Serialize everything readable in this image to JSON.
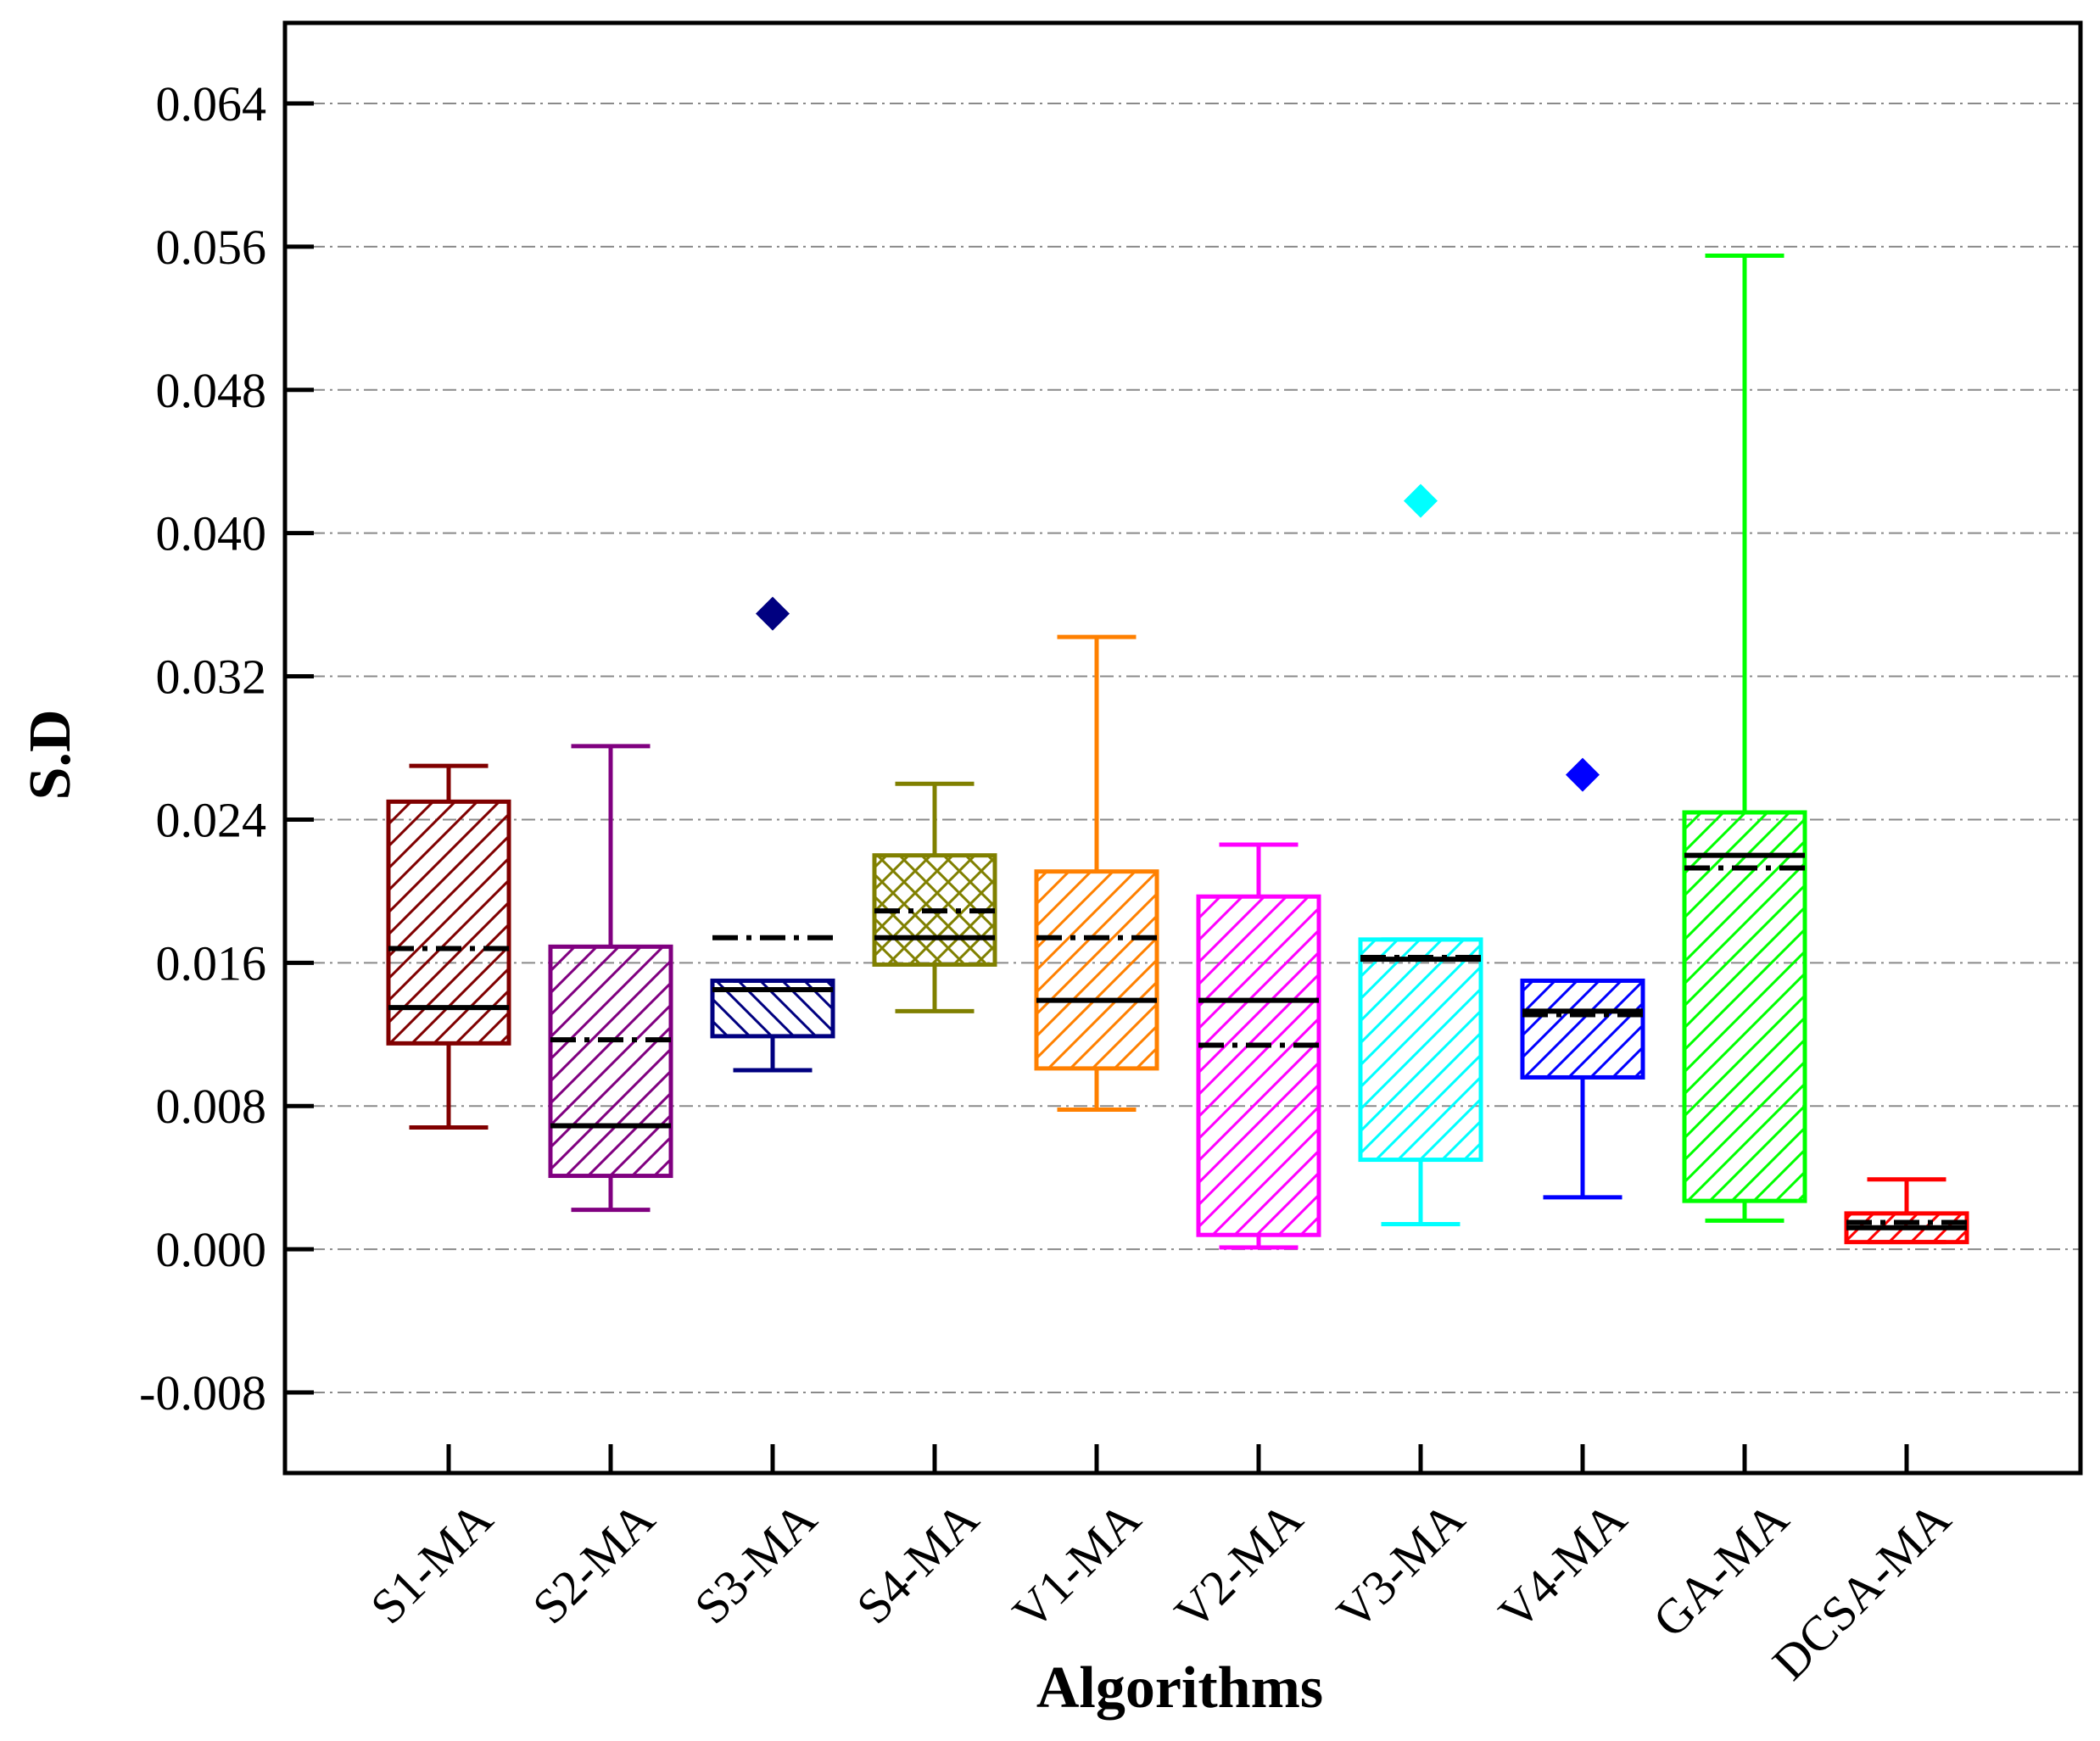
{
  "chart_data": {
    "type": "box",
    "title": "",
    "xlabel": "Algorithms",
    "ylabel": "S.D",
    "ylim": [
      -0.0125,
      0.0685
    ],
    "yticks": [
      -0.008,
      0.0,
      0.008,
      0.016,
      0.024,
      0.032,
      0.04,
      0.048,
      0.056,
      0.064
    ],
    "ytick_labels": [
      "-0.008",
      "0.000",
      "0.008",
      "0.016",
      "0.024",
      "0.032",
      "0.040",
      "0.048",
      "0.056",
      "0.064"
    ],
    "grid": true,
    "categories": [
      "S1-MA",
      "S2-MA",
      "S3-MA",
      "S4-MA",
      "V1-MA",
      "V2-MA",
      "V3-MA",
      "V4-MA",
      "GA-MA",
      "DCSA-MA"
    ],
    "boxes": [
      {
        "name": "S1-MA",
        "color": "#800000",
        "hatch": "diag",
        "whisker_low": 0.0068,
        "q1": 0.0115,
        "median": 0.0135,
        "mean": 0.0168,
        "q3": 0.025,
        "whisker_high": 0.027,
        "outliers": []
      },
      {
        "name": "S2-MA",
        "color": "#800080",
        "hatch": "diag",
        "whisker_low": 0.0022,
        "q1": 0.0041,
        "median": 0.0069,
        "mean": 0.0117,
        "q3": 0.0169,
        "whisker_high": 0.0281,
        "outliers": []
      },
      {
        "name": "S3-MA",
        "color": "#000080",
        "hatch": "back",
        "whisker_low": 0.01,
        "q1": 0.0119,
        "median": 0.0145,
        "mean": 0.0174,
        "q3": 0.015,
        "whisker_high": 0.015,
        "outliers": [
          0.0355
        ]
      },
      {
        "name": "S4-MA",
        "color": "#808000",
        "hatch": "cross",
        "whisker_low": 0.0133,
        "q1": 0.0159,
        "median": 0.0174,
        "mean": 0.0189,
        "q3": 0.022,
        "whisker_high": 0.026,
        "outliers": []
      },
      {
        "name": "V1-MA",
        "color": "#FF8000",
        "hatch": "diag",
        "whisker_low": 0.0078,
        "q1": 0.0101,
        "median": 0.0139,
        "mean": 0.0174,
        "q3": 0.0211,
        "whisker_high": 0.0342,
        "outliers": []
      },
      {
        "name": "V2-MA",
        "color": "#FF00FF",
        "hatch": "diag",
        "whisker_low": 0.0001,
        "q1": 0.0008,
        "median": 0.0139,
        "mean": 0.0114,
        "q3": 0.0197,
        "whisker_high": 0.0226,
        "outliers": []
      },
      {
        "name": "V3-MA",
        "color": "#00FFFF",
        "hatch": "diag",
        "whisker_low": 0.0014,
        "q1": 0.005,
        "median": 0.0162,
        "mean": 0.0163,
        "q3": 0.0173,
        "whisker_high": 0.0173,
        "outliers": [
          0.0418
        ]
      },
      {
        "name": "V4-MA",
        "color": "#0000FF",
        "hatch": "diag",
        "whisker_low": 0.0029,
        "q1": 0.0096,
        "median": 0.0133,
        "mean": 0.0131,
        "q3": 0.015,
        "whisker_high": 0.015,
        "outliers": [
          0.0265
        ]
      },
      {
        "name": "GA-MA",
        "color": "#00FF00",
        "hatch": "diag",
        "whisker_low": 0.0016,
        "q1": 0.0027,
        "median": 0.022,
        "mean": 0.0213,
        "q3": 0.0244,
        "whisker_high": 0.0555,
        "outliers": []
      },
      {
        "name": "DCSA-MA",
        "color": "#FF0000",
        "hatch": "diag",
        "whisker_low": 0.0004,
        "q1": 0.0004,
        "median": 0.0012,
        "mean": 0.0015,
        "q3": 0.002,
        "whisker_high": 0.0039,
        "outliers": []
      }
    ]
  }
}
